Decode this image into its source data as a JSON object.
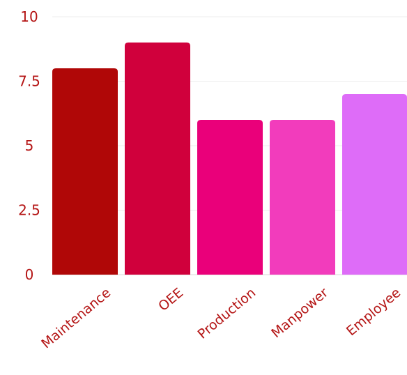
{
  "chart_data": {
    "type": "bar",
    "categories": [
      "Maintenance",
      "OEE",
      "Production",
      "Manpower",
      "Employee"
    ],
    "values": [
      8,
      9,
      6,
      6,
      7
    ],
    "bar_colors": [
      "#b00707",
      "#d0003c",
      "#ea007a",
      "#f23cbc",
      "#de6cf8"
    ],
    "ylim": [
      0,
      10
    ],
    "y_ticks": [
      "0",
      "2.5",
      "5",
      "7.5",
      "10"
    ],
    "y_tick_values": [
      0,
      2.5,
      5,
      7.5,
      10
    ],
    "title": "",
    "xlabel": "",
    "ylabel": "",
    "grid": true,
    "legend": "none",
    "colors": {
      "text": "#b41414",
      "grid": "#eeeeee",
      "axis": "#d9d9d9"
    }
  }
}
